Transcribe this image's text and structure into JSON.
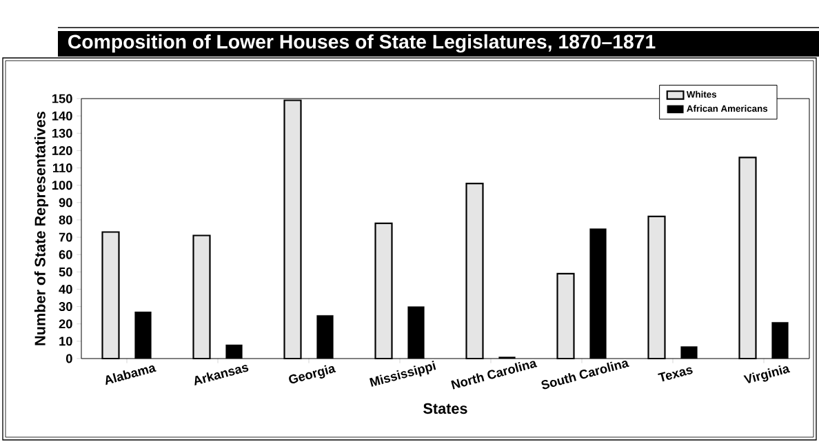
{
  "chart_data": {
    "type": "bar",
    "title": "Composition of Lower Houses of State Legislatures, 1870–1871",
    "xlabel": "States",
    "ylabel": "Number of State Representatives",
    "categories": [
      "Alabama",
      "Arkansas",
      "Georgia",
      "Mississippi",
      "North Carolina",
      "South Carolina",
      "Texas",
      "Virginia"
    ],
    "series": [
      {
        "name": "Whites",
        "color": "#e5e5e5",
        "values": [
          73,
          71,
          149,
          78,
          101,
          49,
          82,
          116
        ]
      },
      {
        "name": "African Americans",
        "color": "#000000",
        "values": [
          27,
          8,
          25,
          30,
          1,
          75,
          7,
          21
        ]
      }
    ],
    "ylim": [
      0,
      150
    ],
    "yticks": [
      0,
      10,
      20,
      30,
      40,
      50,
      60,
      70,
      80,
      90,
      100,
      110,
      120,
      130,
      140,
      150
    ],
    "legend": "top right",
    "grid": false
  }
}
